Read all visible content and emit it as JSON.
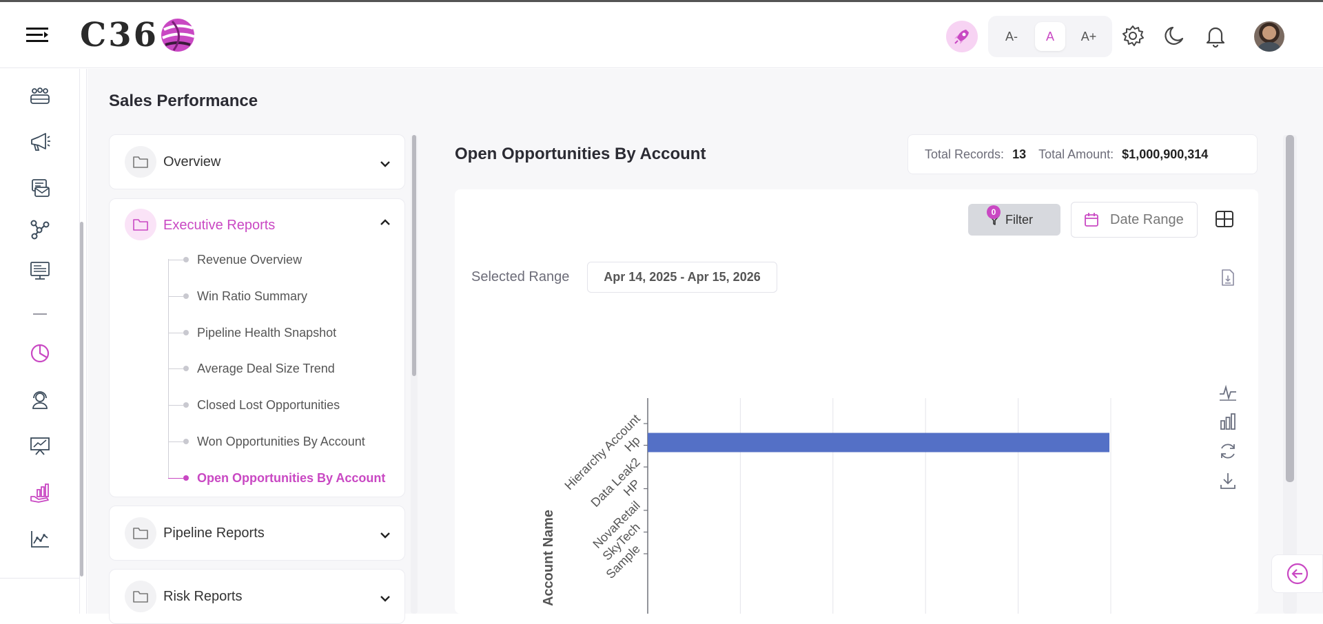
{
  "header": {
    "logo_text": "C36",
    "font_buttons": [
      "A-",
      "A",
      "A+"
    ],
    "font_active": 1
  },
  "page": {
    "title": "Sales Performance"
  },
  "categories": [
    {
      "label": "Overview",
      "expanded": false
    },
    {
      "label": "Executive Reports",
      "expanded": true,
      "items": [
        {
          "label": "Revenue Overview"
        },
        {
          "label": "Win Ratio Summary"
        },
        {
          "label": "Pipeline Health Snapshot"
        },
        {
          "label": "Average Deal Size Trend"
        },
        {
          "label": "Closed Lost Opportunities"
        },
        {
          "label": "Won Opportunities By Account"
        },
        {
          "label": "Open Opportunities By Account",
          "active": true
        }
      ]
    },
    {
      "label": "Pipeline Reports",
      "expanded": false
    },
    {
      "label": "Risk Reports",
      "expanded": false
    }
  ],
  "panel": {
    "title": "Open Opportunities By Account",
    "total_records_label": "Total Records:",
    "total_records_value": "13",
    "total_amount_label": "Total Amount:",
    "total_amount_value": "$1,000,900,314",
    "filter_label": "Filter",
    "filter_count": "0",
    "date_range_label": "Date Range",
    "selected_range_label": "Selected Range",
    "selected_range_value": "Apr 14, 2025 - Apr 15, 2026"
  },
  "colors": {
    "accent": "#c948c3",
    "bar": "#5470c6"
  },
  "chart_data": {
    "type": "bar",
    "orientation": "horizontal",
    "ylabel": "Account Name",
    "categories": [
      "Hierarchy Account",
      "Hp",
      "Data Leak2",
      "HP",
      "NovaRetail",
      "SkyTech",
      "Sample"
    ],
    "series": [
      {
        "values": [
          null,
          1000000000,
          null,
          null,
          null,
          null,
          null
        ]
      }
    ],
    "xlim": [
      0,
      1000000000
    ],
    "grid": true
  }
}
